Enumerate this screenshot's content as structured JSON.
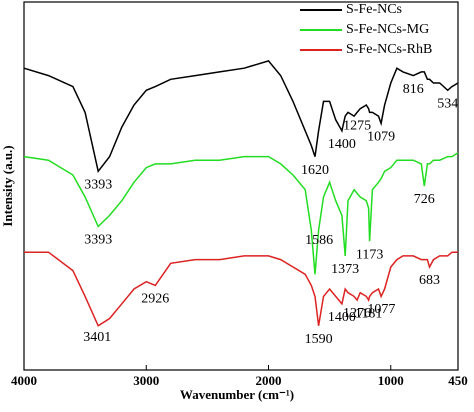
{
  "chart_data": {
    "type": "line",
    "x_label": "Wavenumber (cm⁻¹)",
    "y_label": "Intensity (a.u.)",
    "xlim": [
      4000,
      450
    ],
    "xticks": [
      4000,
      3000,
      2000,
      1000,
      450
    ],
    "ylim": [
      0,
      100
    ],
    "legend": "top-right",
    "x": [
      4000,
      3800,
      3600,
      3500,
      3393,
      3300,
      3200,
      3100,
      3000,
      2926,
      2800,
      2600,
      2400,
      2200,
      2000,
      1900,
      1800,
      1700,
      1650,
      1620,
      1590,
      1550,
      1500,
      1450,
      1400,
      1373,
      1350,
      1300,
      1275,
      1250,
      1200,
      1181,
      1173,
      1150,
      1100,
      1079,
      1050,
      1000,
      950,
      900,
      816,
      750,
      726,
      700,
      683,
      650,
      600,
      534,
      500,
      450
    ],
    "series": [
      {
        "name": "S-Fe-NCs",
        "color": "#000000",
        "values": [
          82,
          80,
          77,
          70,
          54,
          58,
          66,
          72,
          76,
          77,
          79,
          80,
          81,
          82,
          84,
          80,
          73,
          65,
          61,
          58,
          65,
          73,
          73,
          68,
          65,
          69,
          70,
          69,
          70,
          71,
          72,
          71,
          70,
          70,
          69,
          67,
          72,
          78,
          82,
          81,
          80,
          81,
          81,
          79,
          79,
          78,
          78,
          76,
          77,
          78
        ],
        "peaks": [
          3393,
          1620,
          1400,
          1275,
          1079,
          816,
          534
        ]
      },
      {
        "name": "S-Fe-NCs-MG",
        "color": "#22dd22",
        "values": [
          58,
          57,
          53,
          47,
          39,
          42,
          46,
          51,
          55,
          56,
          56,
          57,
          57,
          58,
          58,
          56,
          53,
          49,
          38,
          26,
          38,
          47,
          51,
          46,
          42,
          31,
          46,
          49,
          48,
          47,
          46,
          44,
          35,
          49,
          51,
          52,
          54,
          55,
          57,
          57,
          57,
          56,
          50,
          56,
          56,
          57,
          57,
          58,
          58,
          59
        ],
        "peaks": [
          3393,
          1586,
          1373,
          1173,
          726
        ]
      },
      {
        "name": "S-Fe-NCs-RhB",
        "color": "#dd2222",
        "values": [
          32,
          32,
          27,
          20,
          12,
          14,
          18,
          22,
          24,
          23,
          29,
          30,
          30,
          31,
          31,
          30,
          28,
          26,
          23,
          20,
          12,
          20,
          22,
          20,
          18,
          22,
          21,
          20,
          19,
          21,
          20,
          19,
          20,
          21,
          22,
          20,
          22,
          28,
          30,
          31,
          31,
          30,
          30,
          30,
          28,
          30,
          31,
          31,
          32,
          32
        ],
        "peaks": [
          3401,
          2926,
          1590,
          1400,
          1276,
          1181,
          1077,
          683
        ]
      }
    ]
  }
}
